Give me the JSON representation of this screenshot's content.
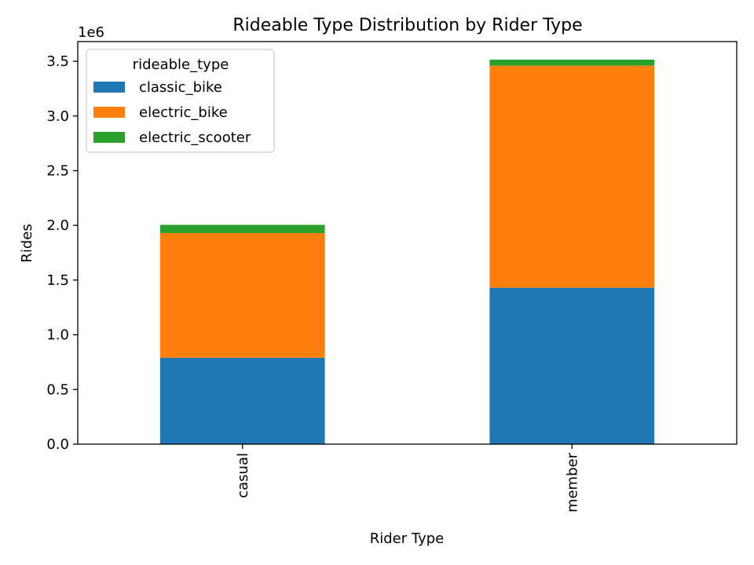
{
  "chart_data": {
    "type": "bar",
    "stacked": true,
    "title": "Rideable Type Distribution by Rider Type",
    "xlabel": "Rider Type",
    "ylabel": "Rides",
    "scale_label": "1e6",
    "categories": [
      "casual",
      "member"
    ],
    "series": [
      {
        "name": "classic_bike",
        "values": [
          0.79,
          1.43
        ]
      },
      {
        "name": "electric_bike",
        "values": [
          1.14,
          2.03
        ]
      },
      {
        "name": "electric_scooter",
        "values": [
          0.075,
          0.055
        ]
      }
    ],
    "ylim": [
      0,
      3.68
    ],
    "yticks": [
      0.0,
      0.5,
      1.0,
      1.5,
      2.0,
      2.5,
      3.0,
      3.5
    ],
    "ytick_labels": [
      "0.0",
      "0.5",
      "1.0",
      "1.5",
      "2.0",
      "2.5",
      "3.0",
      "3.5"
    ],
    "grid": false,
    "legend": {
      "title": "rideable_type",
      "position": "top-left"
    },
    "colors": [
      "#1f77b4",
      "#ff7f0e",
      "#2ca02c"
    ]
  }
}
